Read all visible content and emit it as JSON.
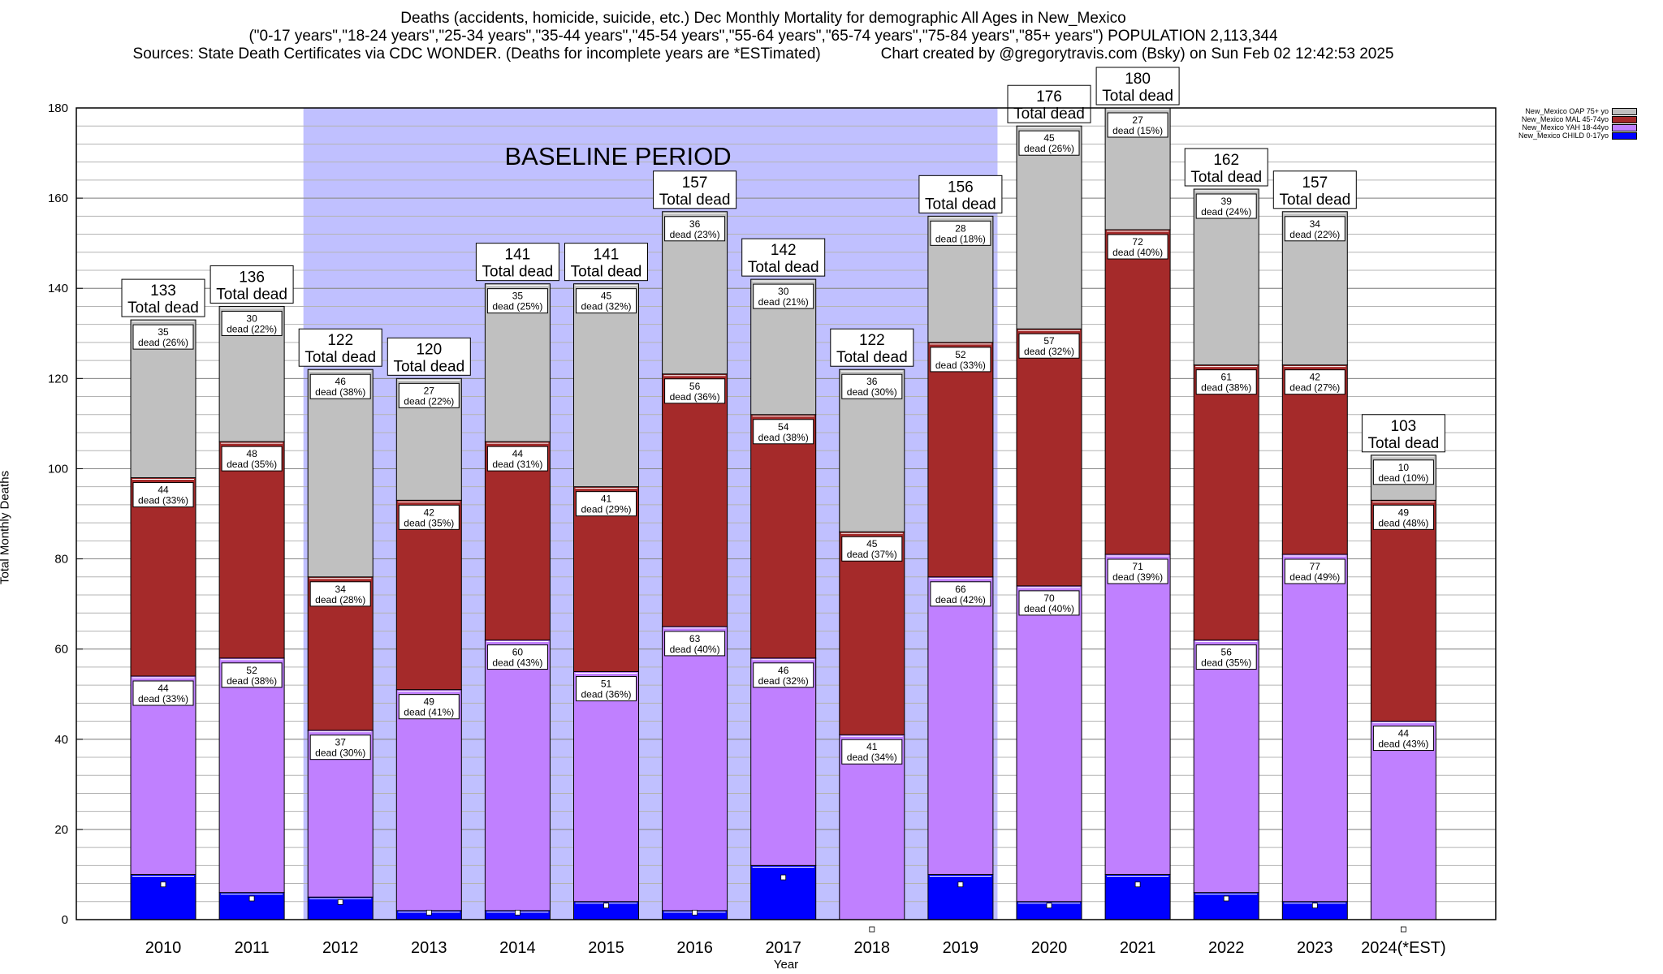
{
  "title_lines": [
    "Deaths (accidents, homicide, suicide, etc.) Dec Monthly Mortality for demographic All Ages in New_Mexico",
    "(\"0-17 years\",\"18-24 years\",\"25-34 years\",\"35-44 years\",\"45-54 years\",\"55-64 years\",\"65-74 years\",\"75-84 years\",\"85+ years\") POPULATION 2,113,344",
    "Sources: State Death Certificates via CDC WONDER. (Deaths for incomplete years are *ESTimated)              Chart created by @gregorytravis.com (Bsky) on Sun Feb 02 12:42:53 2025"
  ],
  "colors": {
    "child": "#0000ff",
    "yah": "#c080ff",
    "mal": "#a52a2a",
    "oap": "#c0c0c0",
    "baseline": "#c0c0ff"
  },
  "chart_data": {
    "type": "bar",
    "stacked": true,
    "xlabel": "Year",
    "ylabel": "Total Monthly Deaths",
    "ylim": [
      0,
      180
    ],
    "y_major_ticks": [
      0,
      20,
      40,
      60,
      80,
      100,
      120,
      140,
      160,
      180
    ],
    "y_minor_step": 4,
    "grid": true,
    "legend_position": "top-right",
    "categories": [
      "2010",
      "2011",
      "2012",
      "2013",
      "2014",
      "2015",
      "2016",
      "2017",
      "2018",
      "2019",
      "2020",
      "2021",
      "2022",
      "2023",
      "2024(*EST)"
    ],
    "series": [
      {
        "name": "New_Mexico CHILD 0-17yo",
        "key": "child",
        "values": [
          10,
          6,
          5,
          2,
          2,
          4,
          2,
          12,
          0,
          10,
          4,
          10,
          6,
          4,
          0
        ]
      },
      {
        "name": "New_Mexico YAH 18-44yo",
        "key": "yah",
        "values": [
          44,
          52,
          37,
          49,
          60,
          51,
          63,
          46,
          41,
          66,
          70,
          71,
          56,
          77,
          44
        ]
      },
      {
        "name": "New_Mexico MAL 45-74yo",
        "key": "mal",
        "values": [
          44,
          48,
          34,
          42,
          44,
          41,
          56,
          54,
          45,
          52,
          57,
          72,
          61,
          42,
          49
        ]
      },
      {
        "name": "New_Mexico OAP 75+ yo",
        "key": "oap",
        "values": [
          35,
          30,
          46,
          27,
          35,
          45,
          36,
          30,
          36,
          28,
          45,
          27,
          39,
          34,
          10
        ]
      }
    ],
    "segment_percent_labels": {
      "yah": [
        "33%",
        "38%",
        "30%",
        "41%",
        "43%",
        "36%",
        "40%",
        "32%",
        "34%",
        "42%",
        "40%",
        "39%",
        "35%",
        "49%",
        "43%"
      ],
      "mal": [
        "33%",
        "35%",
        "28%",
        "35%",
        "31%",
        "29%",
        "36%",
        "38%",
        "37%",
        "33%",
        "32%",
        "40%",
        "38%",
        "27%",
        "48%"
      ],
      "oap": [
        "26%",
        "22%",
        "38%",
        "22%",
        "25%",
        "32%",
        "23%",
        "21%",
        "30%",
        "18%",
        "26%",
        "15%",
        "24%",
        "22%",
        "10%"
      ]
    },
    "segment_label_suffix": "dead",
    "totals": [
      133,
      136,
      122,
      120,
      141,
      141,
      157,
      142,
      122,
      156,
      176,
      180,
      162,
      157,
      103
    ],
    "total_label_text": "Total dead",
    "baseline": {
      "label": "BASELINE PERIOD",
      "from": "2012",
      "to": "2019"
    }
  }
}
